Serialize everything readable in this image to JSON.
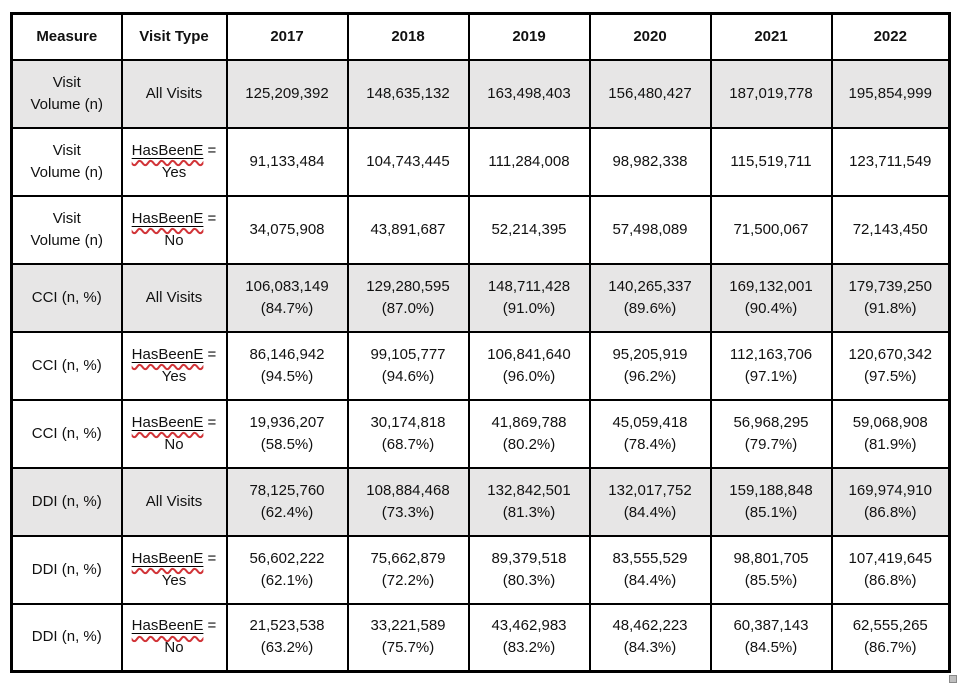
{
  "table": {
    "colors": {
      "border": "#000000",
      "shaded_row": "#e7e6e6",
      "spellcheck_squiggle": "#d13438"
    },
    "columns": [
      "Measure",
      "Visit Type",
      "2017",
      "2018",
      "2019",
      "2020",
      "2021",
      "2022"
    ],
    "rows": [
      {
        "measure": "Visit\nVolume (n)",
        "visit_type": {
          "text": "All Visits"
        },
        "shaded": true,
        "values": [
          "125,209,392",
          "148,635,132",
          "163,498,403",
          "156,480,427",
          "187,019,778",
          "195,854,999"
        ]
      },
      {
        "measure": "Visit\nVolume (n)",
        "visit_type": {
          "misspelled": "HasBeenE",
          "after": " =",
          "line2": "Yes"
        },
        "shaded": false,
        "values": [
          "91,133,484",
          "104,743,445",
          "111,284,008",
          "98,982,338",
          "115,519,711",
          "123,711,549"
        ]
      },
      {
        "measure": "Visit\nVolume (n)",
        "visit_type": {
          "misspelled": "HasBeenE",
          "after": " =",
          "line2": "No"
        },
        "shaded": false,
        "values": [
          "34,075,908",
          "43,891,687",
          "52,214,395",
          "57,498,089",
          "71,500,067",
          "72,143,450"
        ]
      },
      {
        "measure": "CCI (n, %)",
        "visit_type": {
          "text": "All Visits"
        },
        "shaded": true,
        "values": [
          "106,083,149\n(84.7%)",
          "129,280,595\n(87.0%)",
          "148,711,428\n(91.0%)",
          "140,265,337\n(89.6%)",
          "169,132,001\n(90.4%)",
          "179,739,250\n(91.8%)"
        ]
      },
      {
        "measure": "CCI (n, %)",
        "visit_type": {
          "misspelled": "HasBeenE",
          "after": " =",
          "line2": "Yes"
        },
        "shaded": false,
        "values": [
          "86,146,942\n(94.5%)",
          "99,105,777\n(94.6%)",
          "106,841,640\n(96.0%)",
          "95,205,919\n(96.2%)",
          "112,163,706\n(97.1%)",
          "120,670,342\n(97.5%)"
        ]
      },
      {
        "measure": "CCI (n, %)",
        "visit_type": {
          "misspelled": "HasBeenE",
          "after": " =",
          "line2": "No"
        },
        "shaded": false,
        "values": [
          "19,936,207\n(58.5%)",
          "30,174,818\n(68.7%)",
          "41,869,788\n(80.2%)",
          "45,059,418\n(78.4%)",
          "56,968,295\n(79.7%)",
          "59,068,908\n(81.9%)"
        ]
      },
      {
        "measure": "DDI (n, %)",
        "visit_type": {
          "text": "All Visits"
        },
        "shaded": true,
        "values": [
          "78,125,760\n(62.4%)",
          "108,884,468\n(73.3%)",
          "132,842,501\n(81.3%)",
          "132,017,752\n(84.4%)",
          "159,188,848\n(85.1%)",
          "169,974,910\n(86.8%)"
        ]
      },
      {
        "measure": "DDI (n, %)",
        "visit_type": {
          "misspelled": "HasBeenE",
          "after": " =",
          "line2": "Yes"
        },
        "shaded": false,
        "values": [
          "56,602,222\n(62.1%)",
          "75,662,879\n(72.2%)",
          "89,379,518\n(80.3%)",
          "83,555,529\n(84.4%)",
          "98,801,705\n(85.5%)",
          "107,419,645\n(86.8%)"
        ]
      },
      {
        "measure": "DDI (n, %)",
        "visit_type": {
          "misspelled": "HasBeenE",
          "after": " =",
          "line2": "No"
        },
        "shaded": false,
        "values": [
          "21,523,538\n(63.2%)",
          "33,221,589\n(75.7%)",
          "43,462,983\n(83.2%)",
          "48,462,223\n(84.3%)",
          "60,387,143\n(84.5%)",
          "62,555,265\n(86.7%)"
        ]
      }
    ]
  }
}
